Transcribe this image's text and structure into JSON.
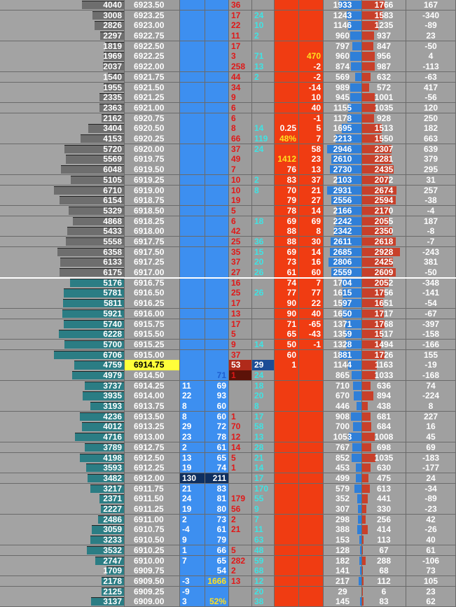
{
  "rows": [
    [
      4040,
      "6923.50",
      null,
      null,
      36,
      null,
      null,
      null,
      1933,
      1766,
      167
    ],
    [
      3008,
      "6923.25",
      null,
      null,
      17,
      24,
      null,
      null,
      1243,
      1583,
      -340
    ],
    [
      2826,
      "6923.00",
      null,
      null,
      22,
      10,
      null,
      null,
      1146,
      1235,
      -89
    ],
    [
      2297,
      "6922.75",
      null,
      null,
      11,
      2,
      null,
      null,
      960,
      937,
      23
    ],
    [
      1819,
      "6922.50",
      null,
      null,
      17,
      null,
      null,
      null,
      797,
      847,
      -50
    ],
    [
      1969,
      "6922.25",
      null,
      null,
      3,
      71,
      null,
      470,
      960,
      956,
      4
    ],
    [
      2037,
      "6922.00",
      null,
      null,
      258,
      13,
      null,
      -2,
      874,
      987,
      -113
    ],
    [
      1540,
      "6921.75",
      null,
      null,
      44,
      2,
      null,
      -2,
      569,
      632,
      -63
    ],
    [
      1955,
      "6921.50",
      null,
      null,
      34,
      null,
      null,
      -14,
      989,
      572,
      417
    ],
    [
      2335,
      "6921.25",
      null,
      null,
      9,
      null,
      null,
      10,
      945,
      1001,
      -56
    ],
    [
      2363,
      "6921.00",
      null,
      null,
      6,
      null,
      null,
      40,
      1155,
      1035,
      120
    ],
    [
      2162,
      "6920.75",
      null,
      null,
      6,
      null,
      null,
      -1,
      1178,
      928,
      250
    ],
    [
      3404,
      "6920.50",
      null,
      null,
      8,
      14,
      0.25,
      5,
      1695,
      1513,
      182
    ],
    [
      4153,
      "6920.25",
      null,
      null,
      66,
      119,
      "48%",
      7,
      2213,
      1550,
      663
    ],
    [
      5720,
      "6920.00",
      null,
      null,
      37,
      24,
      null,
      58,
      2946,
      2307,
      639
    ],
    [
      5569,
      "6919.75",
      null,
      null,
      49,
      null,
      1412,
      23,
      2610,
      2281,
      379
    ],
    [
      6048,
      "6919.50",
      null,
      null,
      7,
      null,
      76,
      13,
      2730,
      2435,
      295
    ],
    [
      5105,
      "6919.25",
      null,
      null,
      10,
      2,
      83,
      37,
      2103,
      2072,
      31
    ],
    [
      6710,
      "6919.00",
      null,
      null,
      10,
      8,
      70,
      21,
      2931,
      2674,
      257
    ],
    [
      6154,
      "6918.75",
      null,
      null,
      19,
      null,
      79,
      27,
      2556,
      2594,
      -38
    ],
    [
      5329,
      "6918.50",
      null,
      null,
      5,
      null,
      78,
      14,
      2166,
      2170,
      -4
    ],
    [
      4868,
      "6918.25",
      null,
      null,
      6,
      18,
      69,
      69,
      2242,
      2055,
      187
    ],
    [
      5433,
      "6918.00",
      null,
      null,
      42,
      null,
      88,
      8,
      2342,
      2350,
      -8
    ],
    [
      5558,
      "6917.75",
      null,
      null,
      25,
      36,
      88,
      30,
      2611,
      2618,
      -7
    ],
    [
      6358,
      "6917.50",
      null,
      null,
      35,
      15,
      69,
      14,
      2685,
      2928,
      -243
    ],
    [
      6133,
      "6917.25",
      null,
      null,
      37,
      20,
      73,
      16,
      2806,
      2425,
      381
    ],
    [
      6175,
      "6917.00",
      null,
      null,
      27,
      26,
      61,
      60,
      2559,
      2609,
      -50
    ],
    [
      5176,
      "6916.75",
      null,
      null,
      16,
      null,
      74,
      7,
      1704,
      2052,
      -348
    ],
    [
      5781,
      "6916.50",
      null,
      null,
      25,
      26,
      77,
      77,
      1615,
      1756,
      -141
    ],
    [
      5811,
      "6916.25",
      null,
      null,
      17,
      null,
      90,
      22,
      1597,
      1651,
      -54
    ],
    [
      5921,
      "6916.00",
      null,
      null,
      13,
      null,
      90,
      40,
      1650,
      1717,
      -67
    ],
    [
      5740,
      "6915.75",
      null,
      null,
      17,
      null,
      71,
      -65,
      1371,
      1768,
      -397
    ],
    [
      6228,
      "6915.50",
      null,
      null,
      5,
      null,
      65,
      -43,
      1359,
      1517,
      -158
    ],
    [
      5700,
      "6915.25",
      null,
      null,
      9,
      14,
      50,
      -1,
      1328,
      1494,
      -166
    ],
    [
      6706,
      "6915.00",
      null,
      null,
      37,
      null,
      60,
      null,
      1881,
      1726,
      155
    ],
    [
      4759,
      "6914.75",
      null,
      null,
      53,
      29,
      1,
      null,
      1144,
      1163,
      -19
    ],
    [
      4979,
      "6914.50",
      null,
      71,
      1,
      24,
      null,
      null,
      865,
      1033,
      -168
    ],
    [
      3737,
      "6914.25",
      11,
      69,
      null,
      18,
      null,
      null,
      710,
      636,
      74
    ],
    [
      3935,
      "6914.00",
      22,
      93,
      null,
      20,
      null,
      null,
      670,
      894,
      -224
    ],
    [
      3193,
      "6913.75",
      8,
      60,
      null,
      8,
      null,
      null,
      446,
      438,
      8
    ],
    [
      4236,
      "6913.50",
      8,
      60,
      1,
      17,
      null,
      null,
      908,
      681,
      227
    ],
    [
      4012,
      "6913.25",
      29,
      72,
      70,
      58,
      null,
      null,
      700,
      684,
      16
    ],
    [
      4716,
      "6913.00",
      23,
      78,
      12,
      13,
      null,
      null,
      1053,
      1008,
      45
    ],
    [
      3789,
      "6912.75",
      2,
      61,
      14,
      28,
      null,
      null,
      767,
      698,
      69
    ],
    [
      4198,
      "6912.50",
      13,
      65,
      5,
      21,
      null,
      null,
      852,
      1035,
      -183
    ],
    [
      3593,
      "6912.25",
      19,
      74,
      1,
      14,
      null,
      null,
      453,
      630,
      -177
    ],
    [
      3482,
      "6912.00",
      130,
      211,
      null,
      17,
      null,
      null,
      499,
      475,
      24
    ],
    [
      3217,
      "6911.75",
      21,
      83,
      null,
      170,
      null,
      null,
      579,
      613,
      -34
    ],
    [
      2371,
      "6911.50",
      24,
      81,
      179,
      55,
      null,
      null,
      352,
      441,
      -89
    ],
    [
      2227,
      "6911.25",
      19,
      80,
      56,
      9,
      null,
      null,
      307,
      330,
      -23
    ],
    [
      2486,
      "6911.00",
      2,
      73,
      2,
      7,
      null,
      null,
      298,
      256,
      42
    ],
    [
      3059,
      "6910.75",
      -4,
      61,
      21,
      11,
      null,
      null,
      388,
      414,
      -26
    ],
    [
      3233,
      "6910.50",
      9,
      79,
      null,
      63,
      null,
      null,
      153,
      113,
      40
    ],
    [
      3532,
      "6910.25",
      1,
      66,
      5,
      48,
      null,
      null,
      128,
      67,
      61
    ],
    [
      2747,
      "6910.00",
      7,
      65,
      282,
      59,
      null,
      null,
      182,
      288,
      -106
    ],
    [
      1709,
      "6909.75",
      null,
      54,
      2,
      68,
      null,
      null,
      141,
      68,
      73
    ],
    [
      2178,
      "6909.50",
      -3,
      1666,
      13,
      12,
      null,
      null,
      217,
      112,
      105
    ],
    [
      2125,
      "6909.25",
      -9,
      null,
      null,
      20,
      null,
      null,
      29,
      6,
      23
    ],
    [
      3137,
      "6909.00",
      3,
      "52%",
      null,
      38,
      null,
      null,
      145,
      83,
      62
    ]
  ]
}
